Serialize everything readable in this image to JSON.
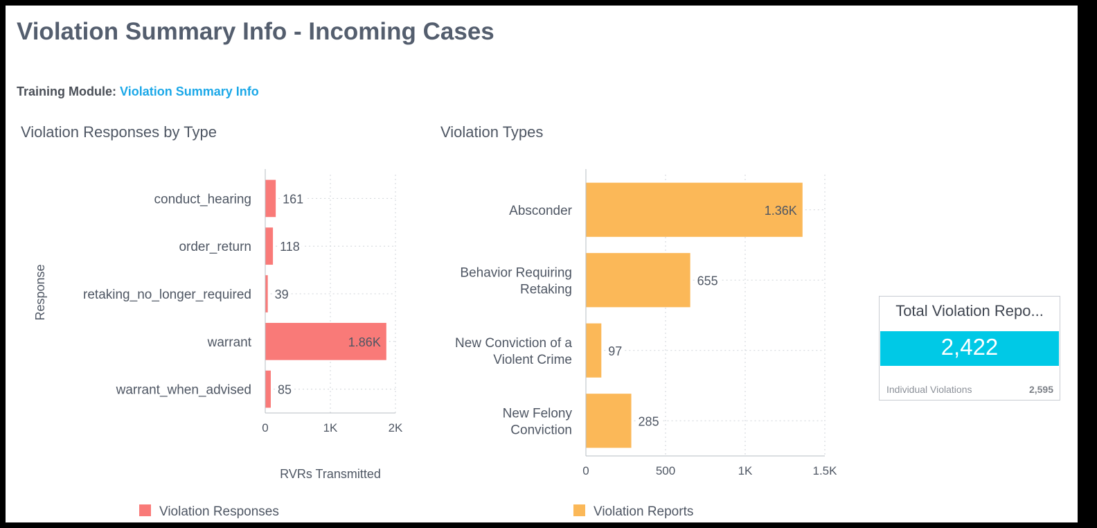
{
  "page": {
    "title": "Violation Summary Info - Incoming Cases",
    "training_label": "Training Module:",
    "training_link": "Violation Summary Info"
  },
  "sections": {
    "left_title": "Violation Responses by Type",
    "right_title": "Violation Types"
  },
  "chart_data": [
    {
      "type": "bar",
      "orientation": "horizontal",
      "title": "Violation Responses by Type",
      "xlabel": "RVRs Transmitted",
      "ylabel": "Response",
      "xlim": [
        0,
        2000
      ],
      "xticks": [
        0,
        1000,
        2000
      ],
      "xtick_labels": [
        "0",
        "1K",
        "2K"
      ],
      "categories": [
        "conduct_hearing",
        "order_return",
        "retaking_no_longer_required",
        "warrant",
        "warrant_when_advised"
      ],
      "series": [
        {
          "name": "Violation Responses",
          "color": "#f97a78",
          "values": [
            161,
            118,
            39,
            1860,
            85
          ],
          "labels": [
            "161",
            "118",
            "39",
            "1.86K",
            "85"
          ]
        }
      ],
      "grid": true,
      "legend": "bottom"
    },
    {
      "type": "bar",
      "orientation": "horizontal",
      "title": "Violation Types",
      "xlabel": "",
      "ylabel": "",
      "xlim": [
        0,
        1500
      ],
      "xticks": [
        0,
        500,
        1000,
        1500
      ],
      "xtick_labels": [
        "0",
        "500",
        "1K",
        "1.5K"
      ],
      "categories": [
        [
          "Absconder"
        ],
        [
          "Behavior Requiring",
          "Retaking"
        ],
        [
          "New Conviction of a",
          "Violent Crime"
        ],
        [
          "New Felony",
          "Conviction"
        ]
      ],
      "series": [
        {
          "name": "Violation Reports",
          "color": "#fbb858",
          "values": [
            1360,
            655,
            97,
            285
          ],
          "labels": [
            "1.36K",
            "655",
            "97",
            "285"
          ]
        }
      ],
      "grid": true,
      "legend": "bottom"
    }
  ],
  "kpi": {
    "title": "Total Violation Repo...",
    "value": "2,422",
    "footer_label": "Individual Violations",
    "footer_value": "2,595",
    "band_color": "#00c9e6"
  }
}
